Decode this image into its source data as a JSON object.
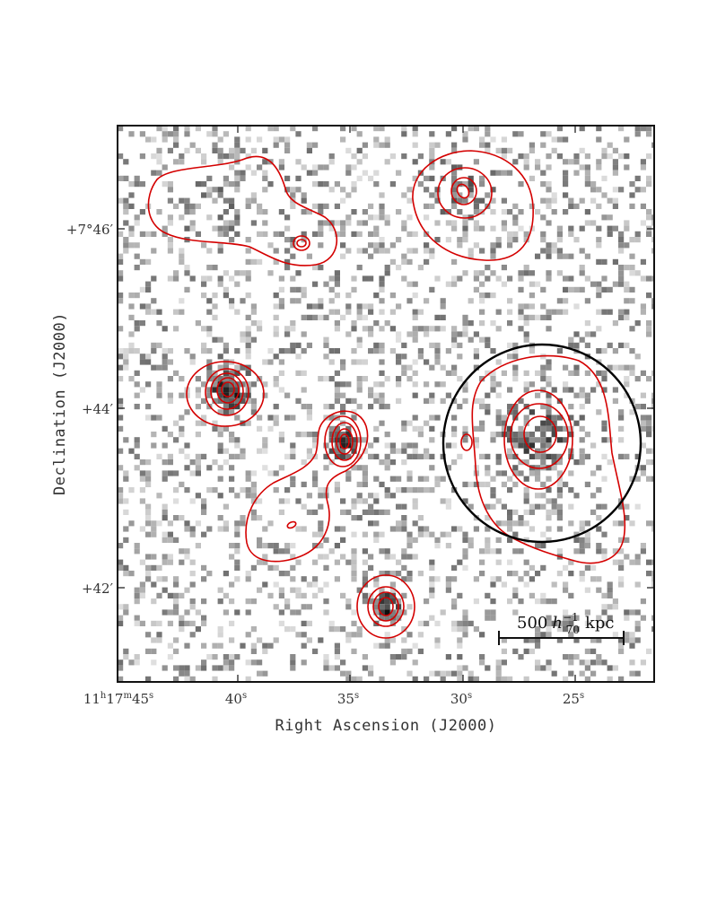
{
  "image": {
    "kind": "grayscale X-ray image with red contour overlay",
    "colormap": "inverted grayscale",
    "contour_color": "#d40000",
    "aperture_color": "#000000"
  },
  "axes": {
    "xlabel": "Right Ascension (J2000)",
    "ylabel": "Declination (J2000)",
    "x_ticks": [
      {
        "h": "11",
        "hs": "h",
        "m": "17",
        "ms": "m",
        "s": "45",
        "ss": "s"
      },
      {
        "s": "40",
        "ss": "s"
      },
      {
        "s": "35",
        "ss": "s"
      },
      {
        "s": "30",
        "ss": "s"
      },
      {
        "s": "25",
        "ss": "s"
      }
    ],
    "y_ticks": [
      {
        "label": "+7°46′"
      },
      {
        "label": "+44′"
      },
      {
        "label": "+42′"
      }
    ]
  },
  "scale_bar": {
    "value": "500",
    "h": "h",
    "exp": "−1",
    "sub": "70",
    "unit": "kpc"
  }
}
